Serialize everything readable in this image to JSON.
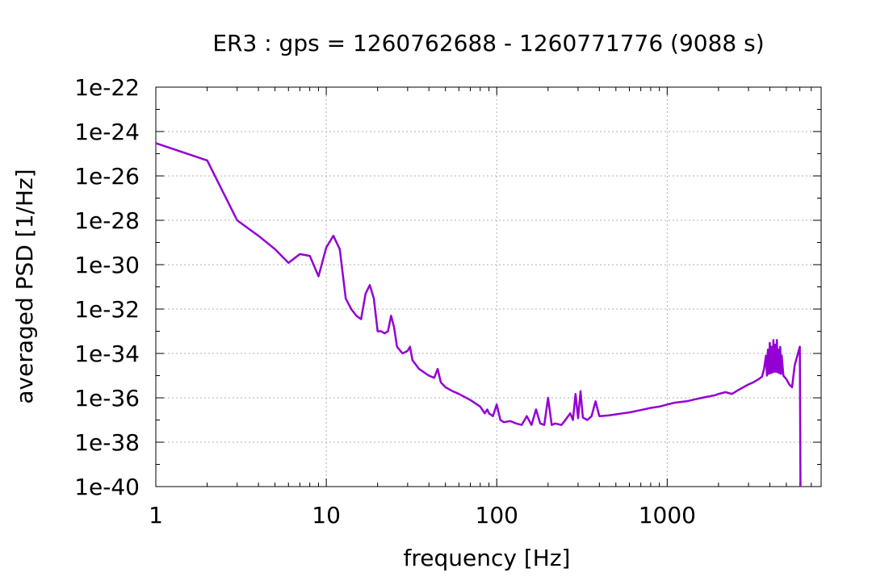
{
  "chart_data": {
    "type": "line",
    "title": "ER3 : gps = 1260762688 - 1260771776 (9088 s)",
    "xlabel": "frequency [Hz]",
    "ylabel": "averaged PSD [1/Hz]",
    "x_scale": "log",
    "y_scale": "log",
    "xlim": [
      1,
      8000
    ],
    "ylim": [
      1e-40,
      1e-22
    ],
    "grid": true,
    "legend": "none",
    "x_ticks": [
      {
        "value": 1,
        "label": "1"
      },
      {
        "value": 10,
        "label": "10"
      },
      {
        "value": 100,
        "label": "100"
      },
      {
        "value": 1000,
        "label": "1000"
      }
    ],
    "y_ticks": [
      {
        "value": 1e-22,
        "label": "1e-22"
      },
      {
        "value": 1e-24,
        "label": "1e-24"
      },
      {
        "value": 1e-26,
        "label": "1e-26"
      },
      {
        "value": 1e-28,
        "label": "1e-28"
      },
      {
        "value": 1e-30,
        "label": "1e-30"
      },
      {
        "value": 1e-32,
        "label": "1e-32"
      },
      {
        "value": 1e-34,
        "label": "1e-34"
      },
      {
        "value": 1e-36,
        "label": "1e-36"
      },
      {
        "value": 1e-38,
        "label": "1e-38"
      },
      {
        "value": 1e-40,
        "label": "1e-40"
      }
    ],
    "series": [
      {
        "color": "#9400d3",
        "points": [
          [
            1,
            3e-25
          ],
          [
            2,
            5e-26
          ],
          [
            3,
            1e-28
          ],
          [
            4,
            2e-29
          ],
          [
            5,
            5e-30
          ],
          [
            6,
            1.2e-30
          ],
          [
            7,
            3e-30
          ],
          [
            8,
            2.5e-30
          ],
          [
            9,
            3e-31
          ],
          [
            10,
            6e-30
          ],
          [
            11,
            2e-29
          ],
          [
            12,
            5e-30
          ],
          [
            13,
            3e-32
          ],
          [
            14,
            1e-32
          ],
          [
            15,
            5e-33
          ],
          [
            16,
            3.5e-33
          ],
          [
            17,
            5e-32
          ],
          [
            18,
            1.2e-31
          ],
          [
            19,
            3e-32
          ],
          [
            20,
            1e-33
          ],
          [
            21,
            1e-33
          ],
          [
            22,
            8e-34
          ],
          [
            23,
            1e-33
          ],
          [
            24,
            5e-33
          ],
          [
            25,
            1.5e-33
          ],
          [
            26,
            2e-34
          ],
          [
            28,
            1e-34
          ],
          [
            30,
            1.3e-34
          ],
          [
            31,
            2e-34
          ],
          [
            32,
            5e-35
          ],
          [
            35,
            2e-35
          ],
          [
            40,
            1e-35
          ],
          [
            43,
            8e-36
          ],
          [
            45,
            2e-35
          ],
          [
            47,
            5e-36
          ],
          [
            50,
            3e-36
          ],
          [
            55,
            2e-36
          ],
          [
            60,
            1.5e-36
          ],
          [
            70,
            8e-37
          ],
          [
            80,
            4e-37
          ],
          [
            85,
            2e-37
          ],
          [
            88,
            3e-37
          ],
          [
            90,
            2e-37
          ],
          [
            95,
            1.5e-37
          ],
          [
            100,
            5e-37
          ],
          [
            105,
            1e-37
          ],
          [
            110,
            8e-38
          ],
          [
            120,
            9e-38
          ],
          [
            130,
            7e-38
          ],
          [
            140,
            6e-38
          ],
          [
            150,
            1.5e-37
          ],
          [
            160,
            6e-38
          ],
          [
            170,
            3e-37
          ],
          [
            180,
            7e-38
          ],
          [
            190,
            6e-38
          ],
          [
            200,
            1e-36
          ],
          [
            210,
            6e-38
          ],
          [
            220,
            7e-38
          ],
          [
            240,
            6e-38
          ],
          [
            250,
            9e-38
          ],
          [
            270,
            2e-37
          ],
          [
            280,
            1e-37
          ],
          [
            290,
            1.5e-36
          ],
          [
            300,
            1.2e-37
          ],
          [
            310,
            2e-36
          ],
          [
            320,
            1.3e-37
          ],
          [
            340,
            1e-37
          ],
          [
            360,
            1.5e-37
          ],
          [
            380,
            7e-37
          ],
          [
            400,
            1.5e-37
          ],
          [
            450,
            1.6e-37
          ],
          [
            500,
            1.8e-37
          ],
          [
            550,
            2e-37
          ],
          [
            600,
            2.2e-37
          ],
          [
            700,
            2.8e-37
          ],
          [
            800,
            3.5e-37
          ],
          [
            900,
            4e-37
          ],
          [
            1000,
            5e-37
          ],
          [
            1100,
            6e-37
          ],
          [
            1200,
            6.5e-37
          ],
          [
            1300,
            7e-37
          ],
          [
            1400,
            8e-37
          ],
          [
            1500,
            9e-37
          ],
          [
            1600,
            1e-36
          ],
          [
            1700,
            1.1e-36
          ],
          [
            1800,
            1.2e-36
          ],
          [
            1900,
            1.3e-36
          ],
          [
            2000,
            1.5e-36
          ],
          [
            2200,
            1.8e-36
          ],
          [
            2400,
            1.5e-36
          ],
          [
            2600,
            2.2e-36
          ],
          [
            2800,
            3e-36
          ],
          [
            3000,
            4e-36
          ],
          [
            3200,
            5e-36
          ],
          [
            3400,
            6.5e-36
          ],
          [
            3600,
            9e-36
          ],
          [
            3700,
            2e-35
          ],
          [
            3800,
            8e-35
          ],
          [
            3850,
            1e-35
          ],
          [
            3900,
            1.5e-34
          ],
          [
            3950,
            1.2e-35
          ],
          [
            4000,
            3e-34
          ],
          [
            4050,
            1.3e-35
          ],
          [
            4100,
            2e-34
          ],
          [
            4150,
            1.4e-35
          ],
          [
            4200,
            4e-34
          ],
          [
            4250,
            1.5e-35
          ],
          [
            4300,
            2.5e-34
          ],
          [
            4350,
            1.5e-35
          ],
          [
            4400,
            4e-34
          ],
          [
            4450,
            1.4e-35
          ],
          [
            4500,
            1.5e-34
          ],
          [
            4550,
            1.3e-35
          ],
          [
            4600,
            2e-34
          ],
          [
            4650,
            1.2e-35
          ],
          [
            4700,
            8e-35
          ],
          [
            4800,
            1e-35
          ],
          [
            5000,
            7e-36
          ],
          [
            5200,
            4e-36
          ],
          [
            5400,
            3e-36
          ],
          [
            5600,
            3e-35
          ],
          [
            6000,
            2e-34
          ],
          [
            6050,
            1e-40
          ]
        ]
      }
    ]
  }
}
